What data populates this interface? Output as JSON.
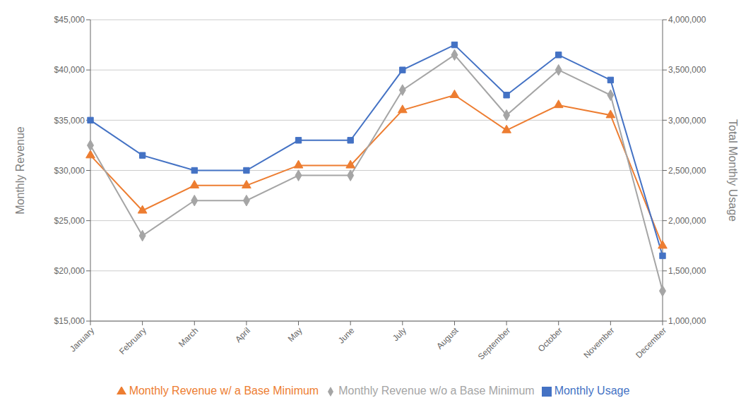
{
  "chart_data": {
    "type": "line",
    "categories": [
      "January",
      "February",
      "March",
      "April",
      "May",
      "June",
      "July",
      "August",
      "September",
      "October",
      "November",
      "December"
    ],
    "series": [
      {
        "name": "Monthly Revenue w/ a Base Minimum",
        "color": "#ED7D31",
        "marker": "triangle",
        "values": [
          31500,
          26000,
          28500,
          28500,
          30500,
          30500,
          36000,
          37500,
          34000,
          36500,
          35500,
          22500
        ]
      },
      {
        "name": "Monthly Revenue w/o a Base Minimum",
        "color": "#A5A5A5",
        "marker": "diamond",
        "values": [
          32500,
          23500,
          27000,
          27000,
          29500,
          29500,
          38000,
          41500,
          35500,
          40000,
          37500,
          18000
        ]
      },
      {
        "name": "Monthly Usage",
        "color": "#4472C4",
        "marker": "square",
        "axis": "y2",
        "values": [
          3000000,
          2650000,
          2500000,
          2500000,
          2800000,
          2800000,
          3500000,
          3750000,
          3250000,
          3650000,
          3400000,
          1650000
        ]
      }
    ],
    "ylabel": "Monthly Revenue",
    "y2label": "Total Monthly Usage",
    "ylim": [
      15000,
      45000
    ],
    "yticks": [
      {
        "value": 15000,
        "label": "$15,000"
      },
      {
        "value": 20000,
        "label": "$20,000"
      },
      {
        "value": 25000,
        "label": "$25,000"
      },
      {
        "value": 30000,
        "label": "$30,000"
      },
      {
        "value": 35000,
        "label": "$35,000"
      },
      {
        "value": 40000,
        "label": "$40,000"
      },
      {
        "value": 45000,
        "label": "$45,000"
      }
    ],
    "y2lim": [
      1000000,
      4000000
    ],
    "y2ticks": [
      {
        "value": 1000000,
        "label": "1,000,000"
      },
      {
        "value": 1500000,
        "label": "1,500,000"
      },
      {
        "value": 2000000,
        "label": "2,000,000"
      },
      {
        "value": 2500000,
        "label": "2,500,000"
      },
      {
        "value": 3000000,
        "label": "3,000,000"
      },
      {
        "value": 3500000,
        "label": "3,500,000"
      },
      {
        "value": 4000000,
        "label": "4,000,000"
      }
    ],
    "grid": true,
    "legend": "bottom"
  }
}
